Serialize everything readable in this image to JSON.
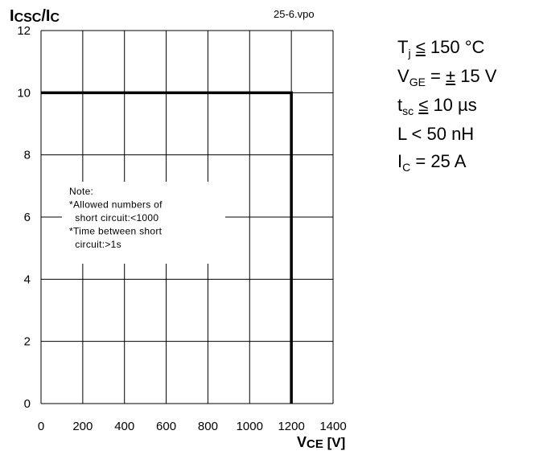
{
  "figure_id": "25-6.vpo",
  "conditions": {
    "tj": {
      "sym": "T",
      "sub": "j",
      "rel": "≤",
      "val": " 150 °C"
    },
    "vge": {
      "sym": "V",
      "sub": "GE",
      "pre": " = ",
      "rel": "±",
      "val": " 15 V"
    },
    "tsc": {
      "sym": "t",
      "sub": "sc",
      "rel": "≤",
      "val": " 10 µs"
    },
    "l": {
      "text": "L < 50 nH"
    },
    "ic": {
      "sym": "I",
      "sub": "C",
      "val": " = 25 A"
    }
  },
  "note": {
    "lines": [
      "Note:",
      "*Allowed numbers of",
      "  short circuit:<1000",
      "*Time between short",
      "  circuit:>1s"
    ]
  },
  "chart_data": {
    "type": "line",
    "ylabel": {
      "main": "I",
      "sub": "CSC",
      "slash": "/I",
      "sub2": "C"
    },
    "xlabel": {
      "main": "V",
      "sub": "CE",
      "unit": " [V]"
    },
    "xlim": [
      0,
      1400
    ],
    "ylim": [
      0,
      12
    ],
    "x_ticks": [
      0,
      200,
      400,
      600,
      800,
      1000,
      1200,
      1400
    ],
    "y_ticks": [
      0,
      2,
      4,
      6,
      8,
      10,
      12
    ],
    "grid": true,
    "series": [
      {
        "x": [
          0,
          1200,
          1200
        ],
        "y": [
          10,
          10,
          0
        ],
        "color": "#000000"
      }
    ]
  }
}
